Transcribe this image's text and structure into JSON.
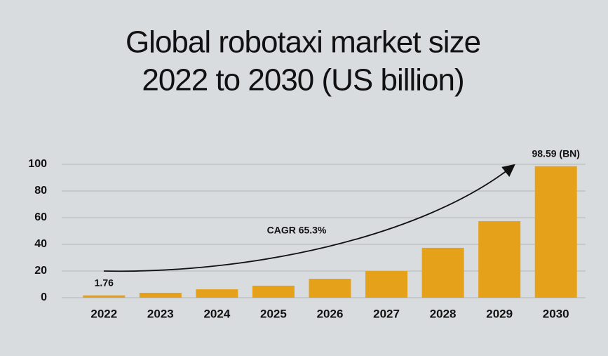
{
  "chart_data": {
    "type": "bar",
    "title": [
      "Global robotaxi market size",
      "2022 to 2030 (US billion)"
    ],
    "categories": [
      "2022",
      "2023",
      "2024",
      "2025",
      "2026",
      "2027",
      "2028",
      "2029",
      "2030"
    ],
    "values": [
      1.76,
      3.7,
      6.3,
      9.0,
      14.2,
      20.0,
      37.4,
      57.4,
      98.59
    ],
    "value_labels": [
      "1.76",
      null,
      null,
      null,
      null,
      null,
      null,
      null,
      "98.59 (BN)"
    ],
    "color": "#e6a11b",
    "annotation": "CAGR 65.3%",
    "ylim": [
      0,
      100
    ],
    "yticks": [
      0,
      20,
      40,
      60,
      80,
      100
    ],
    "grid": true
  }
}
